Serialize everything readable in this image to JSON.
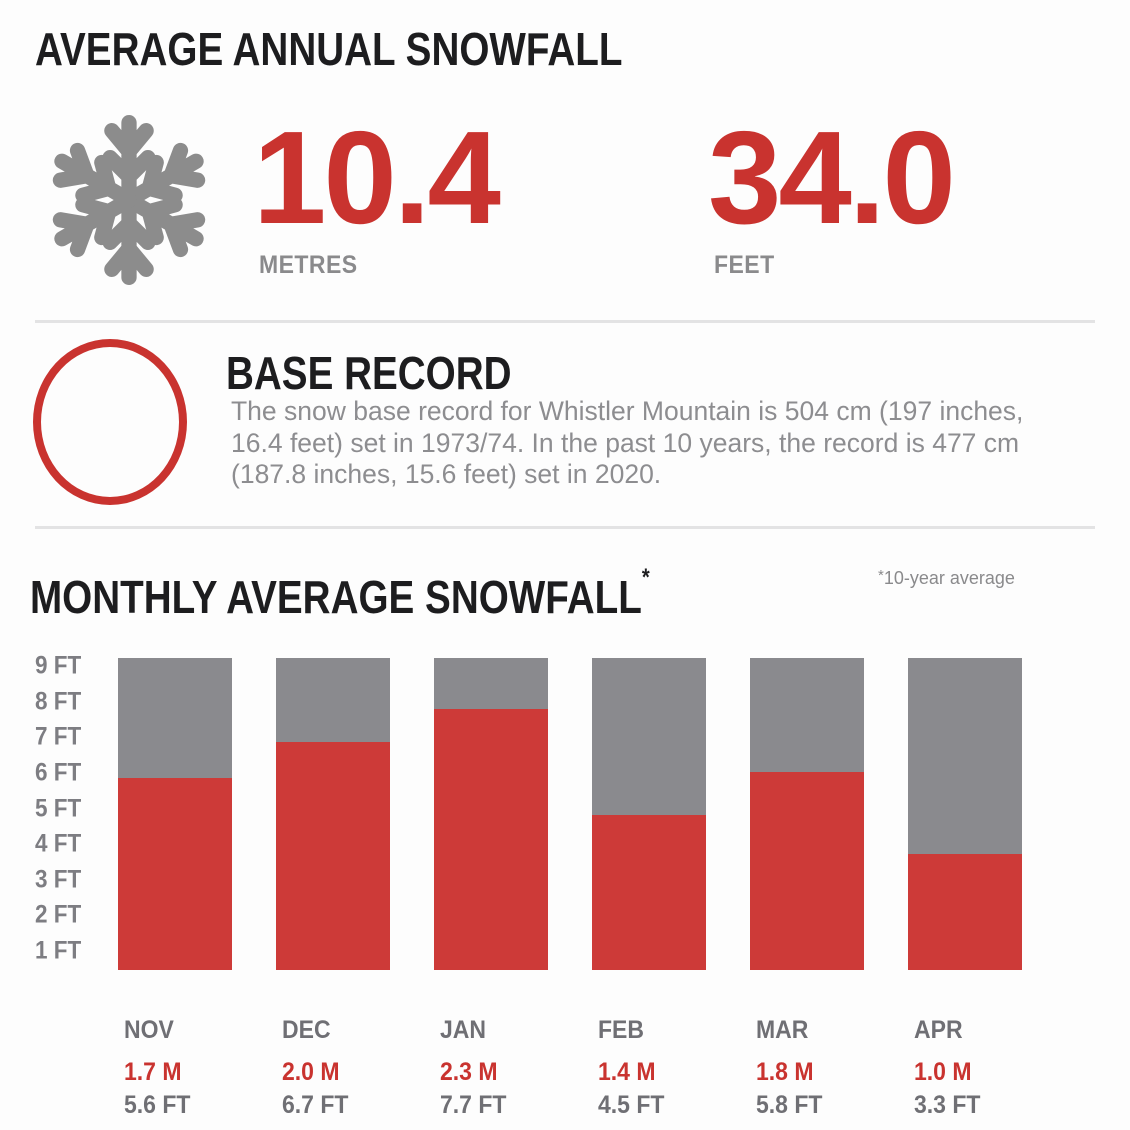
{
  "annual": {
    "title": "AVERAGE ANNUAL SNOWFALL",
    "metric": {
      "value": "10.4",
      "unit": "METRES"
    },
    "imperial": {
      "value": "34.0",
      "unit": "FEET"
    },
    "icon": "snowflake-icon"
  },
  "base_record": {
    "heading": "BASE RECORD",
    "body": "The snow base record for Whistler Mountain is 504 cm (197 inches,\n16.4 feet) set in 1973/74. In the past 10 years, the record is 477 cm\n(187.8 inches, 15.6 feet) set in 2020."
  },
  "monthly": {
    "title": "MONTHLY AVERAGE SNOWFALL",
    "title_asterisk": "*",
    "footnote_star": "*",
    "footnote_text": "10-year average"
  },
  "chart_data": {
    "type": "bar",
    "title": "MONTHLY AVERAGE SNOWFALL (10-year average)",
    "categories": [
      "NOV",
      "DEC",
      "JAN",
      "FEB",
      "MAR",
      "APR"
    ],
    "series": [
      {
        "name": "snowfall_feet",
        "values": [
          5.6,
          6.7,
          7.7,
          4.5,
          5.8,
          3.3
        ]
      },
      {
        "name": "snowfall_metres",
        "values": [
          1.7,
          2.0,
          2.3,
          1.4,
          1.8,
          1.0
        ]
      }
    ],
    "bar_labels_metres": [
      "1.7 M",
      "2.0 M",
      "2.3 M",
      "1.4 M",
      "1.8 M",
      "1.0 M"
    ],
    "bar_labels_feet": [
      "5.6 FT",
      "6.7 FT",
      "7.7 FT",
      "4.5 FT",
      "5.8 FT",
      "3.3 FT"
    ],
    "y_ticks": [
      "1 FT",
      "2 FT",
      "3 FT",
      "4 FT",
      "5 FT",
      "6 FT",
      "7 FT",
      "8 FT",
      "9 FT"
    ],
    "ylabel": "FT",
    "ylim": [
      0,
      9.3
    ],
    "grid": false,
    "legend": "none"
  },
  "colors": {
    "accent_red": "#c9332f",
    "bar_red": "#cd3a38",
    "bar_gray": "#8a8a8e",
    "icon_gray": "#8c8c8c",
    "text_dark": "#1d1d1f",
    "body_gray": "#8d8d90",
    "unit_gray": "#8a8a8c",
    "tick_gray": "#7d7d82",
    "label_gray": "#6f6f74",
    "divider": "#e3e3e4"
  }
}
